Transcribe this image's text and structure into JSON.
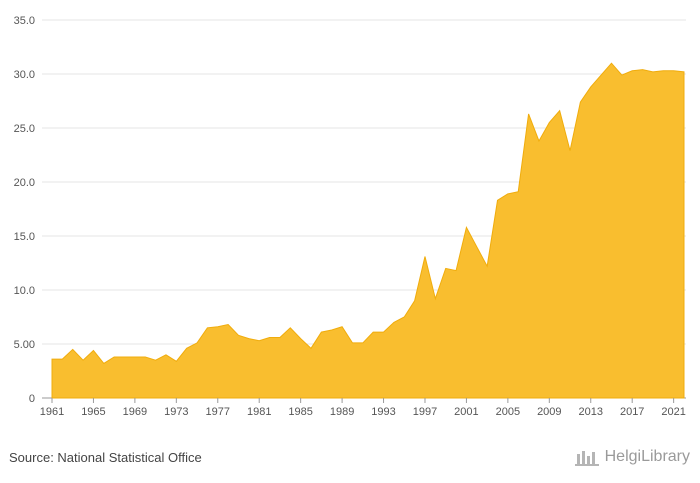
{
  "chart_data": {
    "type": "area",
    "x": [
      1961,
      1962,
      1963,
      1964,
      1965,
      1966,
      1967,
      1968,
      1969,
      1970,
      1971,
      1972,
      1973,
      1974,
      1975,
      1976,
      1977,
      1978,
      1979,
      1980,
      1981,
      1982,
      1983,
      1984,
      1985,
      1986,
      1987,
      1988,
      1989,
      1990,
      1991,
      1992,
      1993,
      1994,
      1995,
      1996,
      1997,
      1998,
      1999,
      2000,
      2001,
      2002,
      2003,
      2004,
      2005,
      2006,
      2007,
      2008,
      2009,
      2010,
      2011,
      2012,
      2013,
      2014,
      2015,
      2016,
      2017,
      2018,
      2019,
      2020,
      2021,
      2022
    ],
    "values": [
      3.6,
      3.6,
      4.5,
      3.5,
      4.4,
      3.2,
      3.8,
      3.8,
      3.8,
      3.8,
      3.5,
      4.0,
      3.4,
      4.6,
      5.1,
      6.5,
      6.6,
      6.8,
      5.8,
      5.5,
      5.3,
      5.6,
      5.6,
      6.5,
      5.5,
      4.6,
      6.1,
      6.3,
      6.6,
      5.1,
      5.1,
      6.1,
      6.1,
      7.0,
      7.5,
      9.0,
      13.1,
      9.2,
      12.0,
      11.8,
      15.8,
      14.0,
      12.2,
      18.3,
      18.9,
      19.1,
      26.3,
      23.8,
      25.5,
      26.6,
      22.9,
      27.4,
      28.8,
      29.9,
      31.0,
      29.9,
      30.3,
      30.4,
      30.2,
      30.3,
      30.3,
      30.2
    ],
    "x_ticks": [
      "1961",
      "1965",
      "1969",
      "1973",
      "1977",
      "1981",
      "1985",
      "1989",
      "1993",
      "1997",
      "2001",
      "2005",
      "2009",
      "2013",
      "2017",
      "2021"
    ],
    "y_ticks": [
      "0",
      "5.00",
      "10.0",
      "15.0",
      "20.0",
      "25.0",
      "30.0",
      "35.0"
    ],
    "ylim": [
      0,
      35
    ],
    "grid": true,
    "fill_color": "#f9be2f",
    "line_color": "#f0ac0c"
  },
  "footer": {
    "source": "Source: National Statistical Office",
    "brand": "HelgiLibrary"
  }
}
